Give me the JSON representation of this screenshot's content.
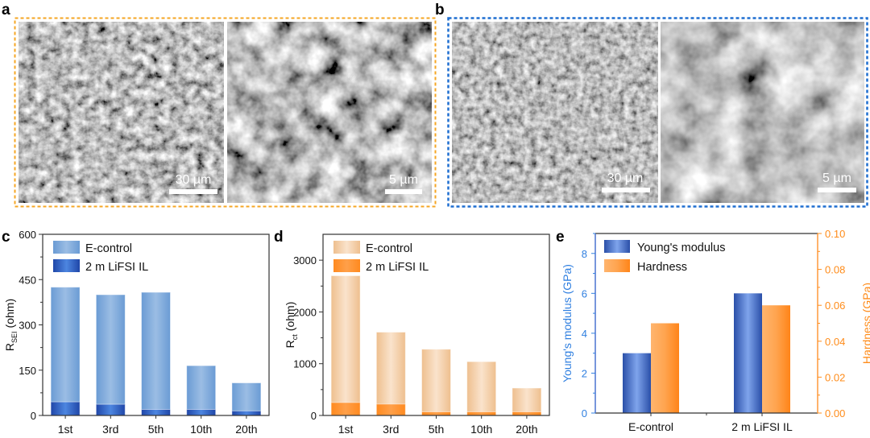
{
  "panels": {
    "a": {
      "label": "a",
      "border_color": "#f5a623",
      "images": [
        {
          "scale_bar": "30 µm"
        },
        {
          "scale_bar": "5 µm"
        }
      ]
    },
    "b": {
      "label": "b",
      "border_color": "#1f6fd1",
      "images": [
        {
          "scale_bar": "30 µm"
        },
        {
          "scale_bar": "5 µm"
        }
      ]
    },
    "c": {
      "label": "c"
    },
    "d": {
      "label": "d"
    },
    "e": {
      "label": "e"
    }
  },
  "chart_data": [
    {
      "panel": "c",
      "type": "bar",
      "stacked_overlay": true,
      "categories": [
        "1st",
        "3rd",
        "5th",
        "10th",
        "20th"
      ],
      "series": [
        {
          "name": "E-control",
          "values": [
            425,
            400,
            408,
            165,
            108
          ],
          "color": "#6fa0d8"
        },
        {
          "name": "2 m LiFSI IL",
          "values": [
            45,
            37,
            20,
            20,
            15
          ],
          "color": "#2f5fc4"
        }
      ],
      "ylabel": "R",
      "ylabel_sub": "SEI",
      "ylabel_unit": "(ohm)",
      "ylim": [
        0,
        600
      ],
      "yticks": [
        "0",
        "150",
        "300",
        "450",
        "600"
      ],
      "legend": "top-left"
    },
    {
      "panel": "d",
      "type": "bar",
      "stacked_overlay": true,
      "categories": [
        "1st",
        "3rd",
        "5th",
        "10th",
        "20th"
      ],
      "series": [
        {
          "name": "E-control",
          "values": [
            2700,
            1610,
            1280,
            1040,
            530
          ],
          "color": "#f1caa0"
        },
        {
          "name": "2 m LiFSI IL",
          "values": [
            250,
            220,
            70,
            70,
            70
          ],
          "color": "#ff8a1f"
        }
      ],
      "ylabel": "R",
      "ylabel_sub": "ct",
      "ylabel_unit": "(ohm)",
      "ylim": [
        0,
        3500
      ],
      "yticks": [
        "0",
        "1000",
        "2000",
        "3000"
      ],
      "legend": "top-left"
    },
    {
      "panel": "e",
      "type": "bar",
      "dual_axis": true,
      "categories": [
        "E-control",
        "2 m LiFSI IL"
      ],
      "series": [
        {
          "name": "Young's modulus",
          "values": [
            3.0,
            6.0
          ],
          "axis": "left",
          "color": "#4a74d0"
        },
        {
          "name": "Hardness",
          "values": [
            0.05,
            0.06
          ],
          "axis": "right",
          "color": "#ff9a3c"
        }
      ],
      "ylabel_left": "Young's modulus (GPa)",
      "ylabel_right": "Hardness (GPa)",
      "ylim_left": [
        0,
        9
      ],
      "ylim_right": [
        0,
        0.1
      ],
      "yticks_left": [
        "0",
        "2",
        "4",
        "6",
        "8"
      ],
      "yticks_right": [
        "0.00",
        "0.02",
        "0.04",
        "0.06",
        "0.08",
        "0.10"
      ],
      "left_axis_color": "#2f7fe0",
      "right_axis_color": "#ff8c1a",
      "legend": "top-left"
    }
  ]
}
